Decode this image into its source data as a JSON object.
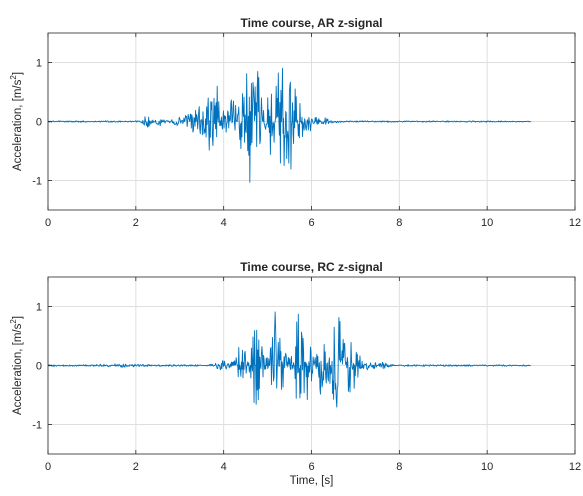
{
  "chart_data": [
    {
      "type": "line",
      "title": "Time course, AR z-signal",
      "xlabel": "",
      "ylabel": "Acceleration, [m/s",
      "ylabel_sup": "2",
      "ylabel_end": "]",
      "xlim": [
        0,
        12
      ],
      "ylim": [
        -1.5,
        1.5
      ],
      "xticks": [
        0,
        2,
        4,
        6,
        8,
        10,
        12
      ],
      "xtick_labels": [
        "0",
        "2",
        "4",
        "6",
        "8",
        "10",
        "12"
      ],
      "yticks": [
        -1,
        0,
        1
      ],
      "ytick_labels": [
        "-1",
        "0",
        "1"
      ],
      "grid": true,
      "line_color": "#0072BD",
      "series": [
        {
          "x_range": [
            0,
            11
          ],
          "sample_interval": 0.012,
          "noise_floor": 0.012,
          "envelope": [
            {
              "t": 2.25,
              "w": 0.1,
              "a": 0.09
            },
            {
              "t": 2.55,
              "w": 0.1,
              "a": 0.06
            },
            {
              "t": 3.05,
              "w": 0.2,
              "a": 0.07
            },
            {
              "t": 3.5,
              "w": 0.3,
              "a": 0.25
            },
            {
              "t": 3.8,
              "w": 0.15,
              "a": 0.7
            },
            {
              "t": 4.3,
              "w": 0.2,
              "a": 0.6
            },
            {
              "t": 4.6,
              "w": 0.12,
              "a": 1.15
            },
            {
              "t": 4.75,
              "w": 0.12,
              "a": 0.8
            },
            {
              "t": 5.05,
              "w": 0.12,
              "a": 0.55
            },
            {
              "t": 5.3,
              "w": 0.12,
              "a": 1.05
            },
            {
              "t": 5.55,
              "w": 0.15,
              "a": 0.8
            },
            {
              "t": 5.85,
              "w": 0.15,
              "a": 0.25
            },
            {
              "t": 6.2,
              "w": 0.25,
              "a": 0.07
            }
          ]
        }
      ]
    },
    {
      "type": "line",
      "title": "Time course, RC z-signal",
      "xlabel": "Time, [s]",
      "ylabel": "Acceleration, [m/s",
      "ylabel_sup": "2",
      "ylabel_end": "]",
      "xlim": [
        0,
        12
      ],
      "ylim": [
        -1.5,
        1.5
      ],
      "xticks": [
        0,
        2,
        4,
        6,
        8,
        10,
        12
      ],
      "xtick_labels": [
        "0",
        "2",
        "4",
        "6",
        "8",
        "10",
        "12"
      ],
      "yticks": [
        -1,
        0,
        1
      ],
      "ytick_labels": [
        "-1",
        "0",
        "1"
      ],
      "grid": true,
      "line_color": "#0072BD",
      "series": [
        {
          "x_range": [
            0,
            11
          ],
          "sample_interval": 0.012,
          "noise_floor": 0.014,
          "envelope": [
            {
              "t": 1.6,
              "w": 0.4,
              "a": 0.02
            },
            {
              "t": 4.0,
              "w": 0.2,
              "a": 0.07
            },
            {
              "t": 4.4,
              "w": 0.15,
              "a": 0.35
            },
            {
              "t": 4.75,
              "w": 0.12,
              "a": 0.85
            },
            {
              "t": 5.15,
              "w": 0.12,
              "a": 0.95
            },
            {
              "t": 5.35,
              "w": 0.12,
              "a": 0.5
            },
            {
              "t": 5.7,
              "w": 0.12,
              "a": 0.85
            },
            {
              "t": 5.95,
              "w": 0.12,
              "a": 0.6
            },
            {
              "t": 6.25,
              "w": 0.12,
              "a": 0.55
            },
            {
              "t": 6.6,
              "w": 0.15,
              "a": 0.95
            },
            {
              "t": 6.9,
              "w": 0.12,
              "a": 0.45
            },
            {
              "t": 7.1,
              "w": 0.15,
              "a": 0.12
            },
            {
              "t": 7.5,
              "w": 0.3,
              "a": 0.05
            }
          ]
        }
      ]
    }
  ]
}
